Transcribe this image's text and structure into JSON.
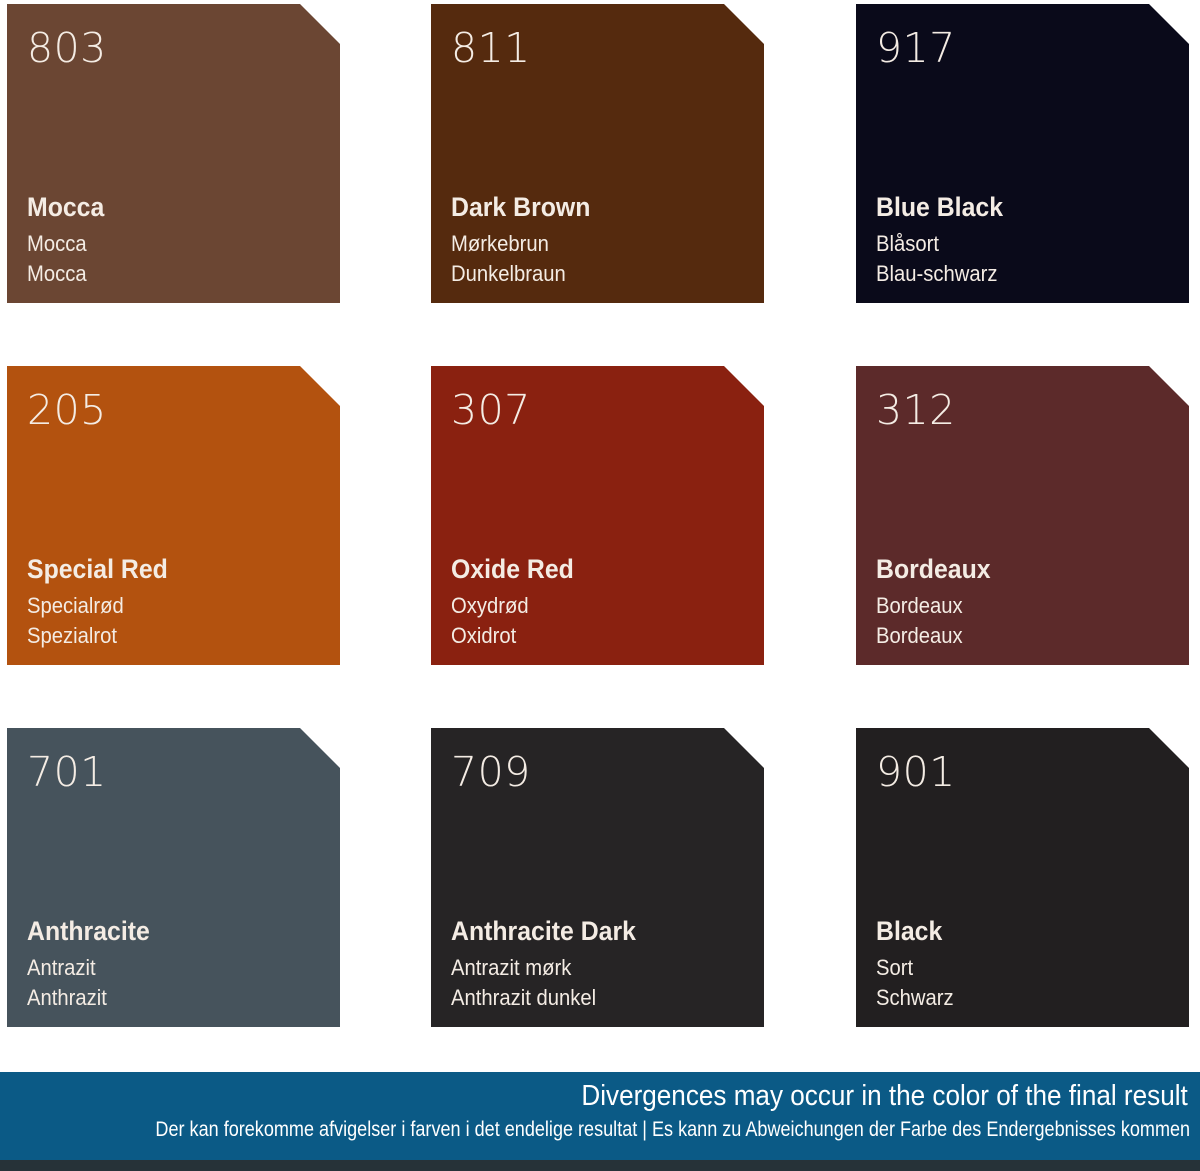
{
  "swatches": [
    {
      "code": "803",
      "name": "Mocca",
      "danish": "Mocca",
      "german": "Mocca",
      "color": "#6b4633"
    },
    {
      "code": "811",
      "name": "Dark Brown",
      "danish": "Mørkebrun",
      "german": "Dunkelbraun",
      "color": "#552a0e"
    },
    {
      "code": "917",
      "name": "Blue Black",
      "danish": "Blåsort",
      "german": "Blau-schwarz",
      "color": "#0a0a1a"
    },
    {
      "code": "205",
      "name": "Special Red",
      "danish": "Specialrød",
      "german": "Spezialrot",
      "color": "#b3520f"
    },
    {
      "code": "307",
      "name": "Oxide Red",
      "danish": "Oxydrød",
      "german": "Oxidrot",
      "color": "#8a2110"
    },
    {
      "code": "312",
      "name": "Bordeaux",
      "danish": "Bordeaux",
      "german": "Bordeaux",
      "color": "#5c2a2a"
    },
    {
      "code": "701",
      "name": "Anthracite",
      "danish": "Antrazit",
      "german": "Anthrazit",
      "color": "#46535c"
    },
    {
      "code": "709",
      "name": "Anthracite Dark",
      "danish": "Antrazit mørk",
      "german": "Anthrazit dunkel",
      "color": "#262425"
    },
    {
      "code": "901",
      "name": "Black",
      "danish": "Sort",
      "german": "Schwarz",
      "color": "#221f20"
    }
  ],
  "footer": {
    "headline": "Divergences may occur in the color of the final result",
    "subline": "Der kan forekomme afvigelser i farven i det endelige resultat  |  Es kann zu Abweichungen der Farbe des Endergebnisses kommen",
    "color": "#0b5a86"
  }
}
